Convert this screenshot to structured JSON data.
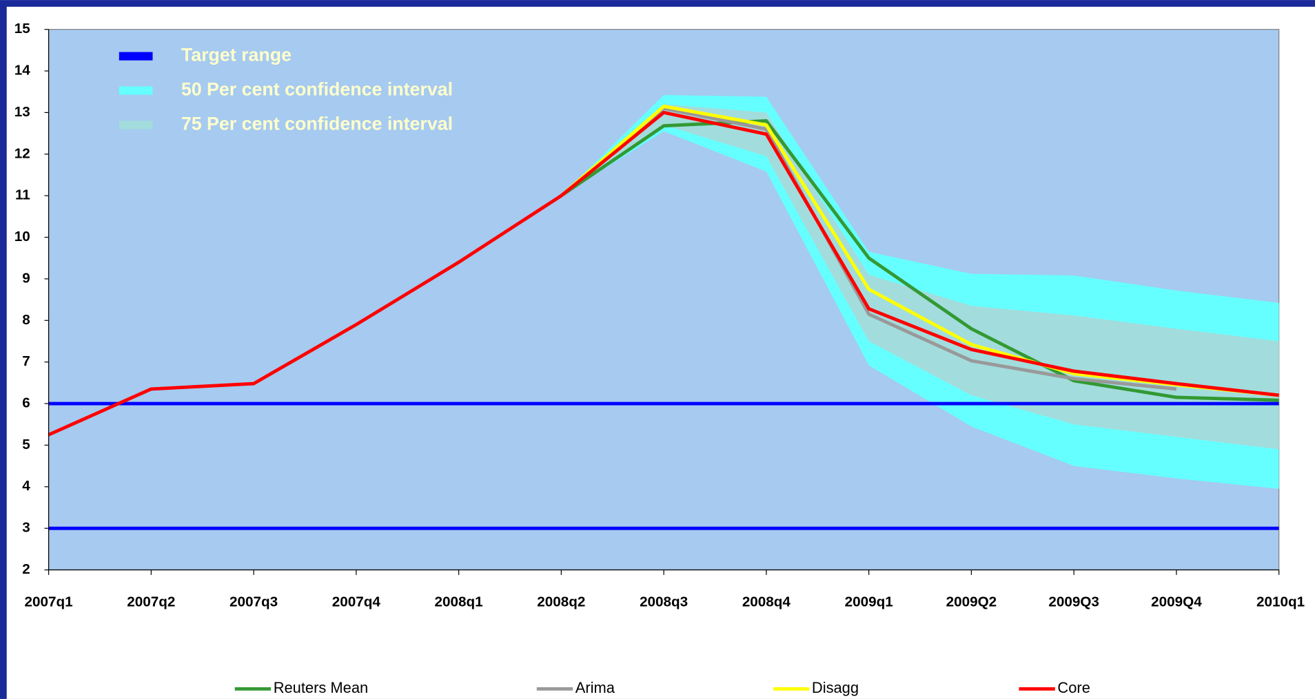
{
  "chart_data": {
    "type": "line",
    "categories": [
      "2007q1",
      "2007q2",
      "2007q3",
      "2007q4",
      "2008q1",
      "2008q2",
      "2008q3",
      "2008q4",
      "2009q1",
      "2009Q2",
      "2009Q3",
      "2009Q4",
      "2010q1"
    ],
    "ylim": [
      2,
      15
    ],
    "yticks": [
      2,
      3,
      4,
      5,
      6,
      7,
      8,
      9,
      10,
      11,
      12,
      13,
      14,
      15
    ],
    "target_range": {
      "name": "Target range",
      "color": "#0000ff",
      "values": [
        3,
        6
      ]
    },
    "bands": [
      {
        "name": "50 Per cent confidence interval",
        "color": "#66ffff",
        "upper": [
          null,
          null,
          null,
          null,
          null,
          11.0,
          13.42,
          13.38,
          9.65,
          9.12,
          9.08,
          8.72,
          8.42
        ],
        "lower": [
          null,
          null,
          null,
          null,
          null,
          11.0,
          12.55,
          11.58,
          6.92,
          5.45,
          4.5,
          4.2,
          3.95
        ]
      },
      {
        "name": "75 Per cent confidence interval",
        "color": "#a3dcdc",
        "upper": [
          null,
          null,
          null,
          null,
          null,
          11.0,
          13.2,
          13.0,
          9.1,
          8.35,
          8.12,
          7.8,
          7.5
        ],
        "lower": [
          null,
          null,
          null,
          null,
          null,
          11.0,
          12.7,
          11.95,
          7.5,
          6.2,
          5.5,
          5.2,
          4.9
        ]
      }
    ],
    "series": [
      {
        "name": "Reuters Mean",
        "color": "#339933",
        "values": [
          null,
          null,
          null,
          null,
          null,
          11.0,
          12.68,
          12.8,
          9.5,
          7.8,
          6.55,
          6.15,
          6.08
        ]
      },
      {
        "name": "Arima",
        "color": "#999999",
        "values": [
          null,
          null,
          null,
          null,
          null,
          11.0,
          13.1,
          12.6,
          8.15,
          7.03,
          6.6,
          6.35,
          null
        ]
      },
      {
        "name": "Disagg",
        "color": "#ffff00",
        "values": [
          null,
          null,
          null,
          null,
          null,
          11.0,
          13.15,
          12.7,
          8.75,
          7.42,
          6.72,
          6.45,
          6.2
        ]
      },
      {
        "name": "Core",
        "color": "#ff0000",
        "values": [
          5.25,
          6.35,
          6.48,
          7.9,
          9.4,
          11.0,
          13.0,
          12.48,
          8.28,
          7.3,
          6.78,
          6.48,
          6.2
        ]
      }
    ]
  }
}
